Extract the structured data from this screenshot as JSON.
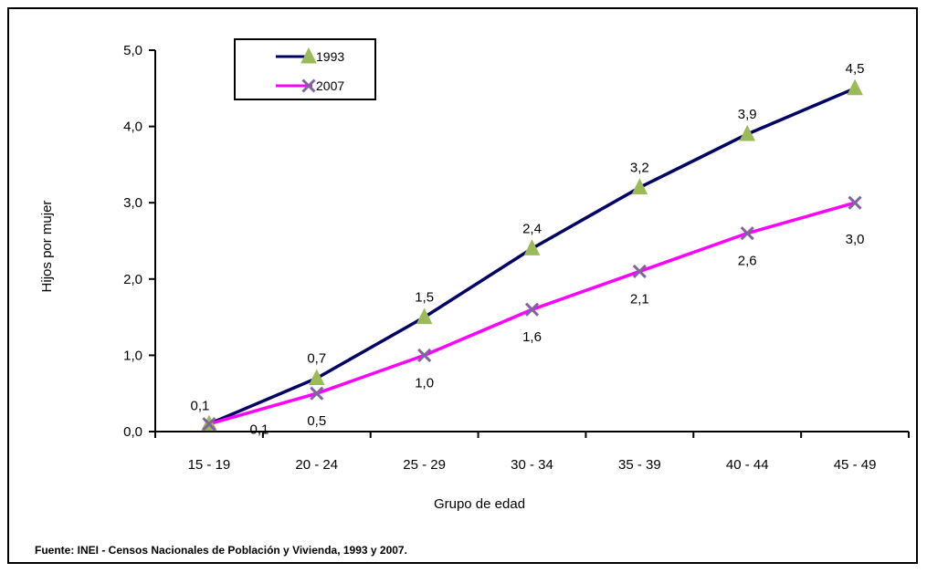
{
  "chart_data": {
    "type": "line",
    "categories": [
      "15 - 19",
      "20 - 24",
      "25 - 29",
      "30 - 34",
      "35 - 39",
      "40 - 44",
      "45 - 49"
    ],
    "series": [
      {
        "name": "1993",
        "values": [
          0.1,
          0.7,
          1.5,
          2.4,
          3.2,
          3.9,
          4.5
        ],
        "labels": [
          "0,1",
          "0,7",
          "1,5",
          "2,4",
          "3,2",
          "3,9",
          "4,5"
        ],
        "line_color": "#000066",
        "marker": "triangle",
        "marker_color": "#9BBB59"
      },
      {
        "name": "2007",
        "values": [
          0.1,
          0.5,
          1.0,
          1.6,
          2.1,
          2.6,
          3.0
        ],
        "labels": [
          "0,1",
          "0,5",
          "1,0",
          "1,6",
          "2,1",
          "2,6",
          "3,0"
        ],
        "line_color": "#FF00FF",
        "marker": "x",
        "marker_color": "#8064A2"
      }
    ],
    "xlabel": "Grupo de edad",
    "ylabel": "Hijos por mujer",
    "ylim": [
      0,
      5
    ],
    "yticks": [
      "0,0",
      "1,0",
      "2,0",
      "3,0",
      "4,0",
      "5,0"
    ],
    "legend_position": "top-left",
    "grid": false
  },
  "source_note": "Fuente: INEI - Censos Nacionales de Población y Vivienda, 1993 y 2007."
}
